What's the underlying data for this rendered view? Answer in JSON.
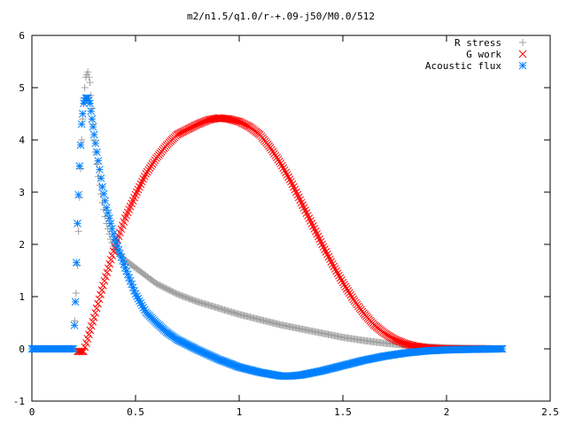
{
  "chart_data": {
    "type": "scatter",
    "title": "m2/n1.5/q1.0/r-+.09-j50/M0.0/512",
    "xlabel": "",
    "ylabel": "",
    "xlim": [
      0,
      2.5
    ],
    "ylim": [
      -1,
      6
    ],
    "x_ticks": [
      0,
      0.5,
      1,
      1.5,
      2,
      2.5
    ],
    "x_tick_labels": [
      "0",
      "0.5",
      "1",
      "1.5",
      "2",
      "2.5"
    ],
    "y_ticks": [
      -1,
      0,
      1,
      2,
      3,
      4,
      5,
      6
    ],
    "y_tick_labels": [
      "-1",
      "0",
      "1",
      "2",
      "3",
      "4",
      "5",
      "6"
    ],
    "grid": false,
    "legend_position": "top-right",
    "series": [
      {
        "name": "R stress",
        "marker": "plus",
        "color": "#a0a0a0",
        "x": [
          0.0,
          0.2,
          0.22,
          0.23,
          0.24,
          0.25,
          0.26,
          0.27,
          0.28,
          0.29,
          0.3,
          0.32,
          0.34,
          0.36,
          0.38,
          0.4,
          0.45,
          0.5,
          0.55,
          0.6,
          0.7,
          0.8,
          0.9,
          1.0,
          1.1,
          1.2,
          1.3,
          1.4,
          1.5,
          1.6,
          1.7,
          1.8,
          1.9,
          2.0,
          2.1,
          2.27
        ],
        "y": [
          0,
          0,
          1.6,
          2.9,
          4.0,
          4.8,
          5.2,
          5.3,
          5.1,
          4.6,
          4.0,
          3.3,
          2.8,
          2.4,
          2.1,
          1.9,
          1.7,
          1.55,
          1.4,
          1.25,
          1.05,
          0.9,
          0.78,
          0.66,
          0.56,
          0.46,
          0.38,
          0.3,
          0.22,
          0.16,
          0.11,
          0.07,
          0.04,
          0.02,
          0.01,
          0.0
        ]
      },
      {
        "name": "G work",
        "marker": "cross",
        "color": "#ff0000",
        "x": [
          0.22,
          0.25,
          0.3,
          0.35,
          0.4,
          0.45,
          0.5,
          0.55,
          0.6,
          0.65,
          0.7,
          0.75,
          0.8,
          0.85,
          0.9,
          0.95,
          1.0,
          1.05,
          1.1,
          1.15,
          1.2,
          1.25,
          1.3,
          1.35,
          1.4,
          1.45,
          1.5,
          1.55,
          1.6,
          1.65,
          1.7,
          1.75,
          1.8,
          1.85,
          1.9,
          1.95,
          2.0,
          2.1,
          2.2
        ],
        "y": [
          -0.05,
          -0.05,
          0.6,
          1.3,
          1.95,
          2.5,
          2.95,
          3.35,
          3.65,
          3.9,
          4.1,
          4.2,
          4.3,
          4.38,
          4.42,
          4.4,
          4.35,
          4.25,
          4.1,
          3.85,
          3.55,
          3.2,
          2.8,
          2.4,
          2.0,
          1.62,
          1.27,
          0.95,
          0.68,
          0.46,
          0.3,
          0.18,
          0.1,
          0.05,
          0.02,
          0.01,
          0.0,
          0.0,
          0.0
        ]
      },
      {
        "name": "Acoustic flux",
        "marker": "star",
        "color": "#0080ff",
        "x": [
          0.0,
          0.2,
          0.21,
          0.22,
          0.23,
          0.24,
          0.25,
          0.26,
          0.27,
          0.28,
          0.29,
          0.3,
          0.32,
          0.34,
          0.36,
          0.38,
          0.4,
          0.45,
          0.5,
          0.55,
          0.6,
          0.65,
          0.7,
          0.8,
          0.9,
          1.0,
          1.1,
          1.2,
          1.25,
          1.3,
          1.4,
          1.5,
          1.6,
          1.7,
          1.8,
          1.9,
          2.0,
          2.1,
          2.27
        ],
        "y": [
          0,
          0,
          0.9,
          2.4,
          3.5,
          4.3,
          4.7,
          4.8,
          4.8,
          4.7,
          4.4,
          4.1,
          3.6,
          3.1,
          2.7,
          2.4,
          2.1,
          1.55,
          1.05,
          0.7,
          0.5,
          0.32,
          0.18,
          -0.02,
          -0.2,
          -0.35,
          -0.45,
          -0.52,
          -0.52,
          -0.5,
          -0.42,
          -0.32,
          -0.22,
          -0.14,
          -0.08,
          -0.04,
          -0.02,
          -0.01,
          0.0
        ]
      }
    ]
  }
}
